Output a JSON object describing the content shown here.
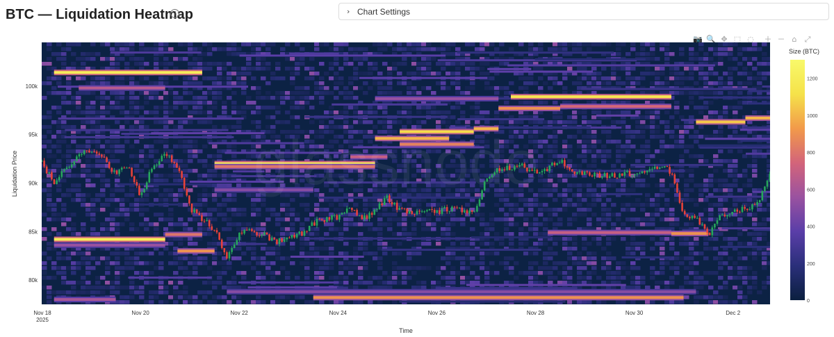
{
  "page": {
    "title": "BTC — Liquidation Heatmap",
    "help_icon": "?",
    "settings_label": "Chart Settings",
    "settings_icon": "chevron-right-icon"
  },
  "toolbar": [
    {
      "name": "camera-icon",
      "glyph": "📷"
    },
    {
      "name": "zoom-icon",
      "glyph": "🔍"
    },
    {
      "name": "pan-icon",
      "glyph": "✥"
    },
    {
      "name": "box-select-icon",
      "glyph": "⬚"
    },
    {
      "name": "lasso-select-icon",
      "glyph": "◌"
    },
    {
      "name": "zoom-in-icon",
      "glyph": "＋"
    },
    {
      "name": "zoom-out-icon",
      "glyph": "－"
    },
    {
      "name": "home-icon",
      "glyph": "⌂"
    },
    {
      "name": "autoscale-icon",
      "glyph": "⤢"
    }
  ],
  "chart_data": {
    "type": "heatmap",
    "xlabel": "Time",
    "ylabel": "Liquidation Price",
    "x_ticks": [
      "Nov 18\n2025",
      "Nov 20",
      "Nov 22",
      "Nov 24",
      "Nov 26",
      "Nov 28",
      "Nov 30",
      "Dec 2"
    ],
    "x_range": [
      "2025-11-18",
      "2025-12-02 18:00"
    ],
    "y_ticks": [
      "80k",
      "85k",
      "90k",
      "95k",
      "100k"
    ],
    "ylim": [
      77500,
      104500
    ],
    "colorbar": {
      "title": "Size (BTC)",
      "ticks": [
        "0",
        "200",
        "400",
        "600",
        "800",
        "1000",
        "1200"
      ],
      "range": [
        0,
        1300
      ],
      "colors": [
        "#0b1f3f",
        "#2a2f7a",
        "#5a3ea8",
        "#9a52a0",
        "#d3647a",
        "#f29a4a",
        "#f5e24a",
        "#f8f96a"
      ]
    },
    "liquidation_bands": [
      {
        "price": 101400,
        "start": "2025-11-18 06:00",
        "end": "2025-11-21 06:00",
        "size": 1200
      },
      {
        "price": 99800,
        "start": "2025-11-18 18:00",
        "end": "2025-11-20 12:00",
        "size": 650
      },
      {
        "price": 98700,
        "start": "2025-11-24 18:00",
        "end": "2025-11-27 06:00",
        "size": 550
      },
      {
        "price": 98900,
        "start": "2025-11-27 12:00",
        "end": "2025-11-30 18:00",
        "size": 1150
      },
      {
        "price": 97700,
        "start": "2025-11-27 06:00",
        "end": "2025-11-28 12:00",
        "size": 900
      },
      {
        "price": 97900,
        "start": "2025-11-28 12:00",
        "end": "2025-11-30 18:00",
        "size": 750
      },
      {
        "price": 96300,
        "start": "2025-12-01 06:00",
        "end": "2025-12-02 06:00",
        "size": 1050
      },
      {
        "price": 96700,
        "start": "2025-12-02 06:00",
        "end": "2025-12-02 18:00",
        "size": 1000
      },
      {
        "price": 95300,
        "start": "2025-11-25 06:00",
        "end": "2025-11-26 18:00",
        "size": 1100
      },
      {
        "price": 95600,
        "start": "2025-11-26 18:00",
        "end": "2025-11-27 06:00",
        "size": 1000
      },
      {
        "price": 94600,
        "start": "2025-11-24 18:00",
        "end": "2025-11-26 06:00",
        "size": 1000
      },
      {
        "price": 94000,
        "start": "2025-11-25 06:00",
        "end": "2025-11-26 18:00",
        "size": 850
      },
      {
        "price": 92700,
        "start": "2025-11-24 06:00",
        "end": "2025-11-25 00:00",
        "size": 700
      },
      {
        "price": 92000,
        "start": "2025-11-21 12:00",
        "end": "2025-11-24 18:00",
        "size": 1200
      },
      {
        "price": 91700,
        "start": "2025-11-21 12:00",
        "end": "2025-11-24 18:00",
        "size": 800
      },
      {
        "price": 89300,
        "start": "2025-11-21 12:00",
        "end": "2025-11-23 12:00",
        "size": 500
      },
      {
        "price": 84900,
        "start": "2025-11-28 06:00",
        "end": "2025-11-30 18:00",
        "size": 700
      },
      {
        "price": 84800,
        "start": "2025-11-30 18:00",
        "end": "2025-12-01 12:00",
        "size": 900
      },
      {
        "price": 84700,
        "start": "2025-11-20 12:00",
        "end": "2025-11-21 06:00",
        "size": 800
      },
      {
        "price": 84200,
        "start": "2025-11-18 06:00",
        "end": "2025-11-20 12:00",
        "size": 1200
      },
      {
        "price": 83600,
        "start": "2025-11-18 06:00",
        "end": "2025-11-20 12:00",
        "size": 550
      },
      {
        "price": 83000,
        "start": "2025-11-20 18:00",
        "end": "2025-11-21 12:00",
        "size": 900
      },
      {
        "price": 78800,
        "start": "2025-11-21 18:00",
        "end": "2025-12-01 06:00",
        "size": 500
      },
      {
        "price": 78200,
        "start": "2025-11-23 12:00",
        "end": "2025-12-01 00:00",
        "size": 900
      },
      {
        "price": 78000,
        "start": "2025-11-18 06:00",
        "end": "2025-11-19 12:00",
        "size": 600
      }
    ],
    "price_series": {
      "name": "BTC",
      "up_color": "#26a65b",
      "down_color": "#e8423a",
      "points": [
        [
          "2025-11-18 00:00",
          92200
        ],
        [
          "2025-11-18 06:00",
          90000
        ],
        [
          "2025-11-18 12:00",
          91500
        ],
        [
          "2025-11-18 18:00",
          92800
        ],
        [
          "2025-11-19 00:00",
          93600
        ],
        [
          "2025-11-19 06:00",
          92700
        ],
        [
          "2025-11-19 12:00",
          90800
        ],
        [
          "2025-11-19 18:00",
          91800
        ],
        [
          "2025-11-20 00:00",
          88600
        ],
        [
          "2025-11-20 06:00",
          91800
        ],
        [
          "2025-11-20 12:00",
          93000
        ],
        [
          "2025-11-20 18:00",
          91800
        ],
        [
          "2025-11-21 00:00",
          87400
        ],
        [
          "2025-11-21 06:00",
          86300
        ],
        [
          "2025-11-21 12:00",
          85100
        ],
        [
          "2025-11-21 18:00",
          82400
        ],
        [
          "2025-11-22 00:00",
          84800
        ],
        [
          "2025-11-22 06:00",
          85000
        ],
        [
          "2025-11-22 12:00",
          84600
        ],
        [
          "2025-11-22 18:00",
          84000
        ],
        [
          "2025-11-23 00:00",
          84300
        ],
        [
          "2025-11-23 06:00",
          84800
        ],
        [
          "2025-11-23 12:00",
          85900
        ],
        [
          "2025-11-23 18:00",
          86300
        ],
        [
          "2025-11-24 00:00",
          86500
        ],
        [
          "2025-11-24 06:00",
          87300
        ],
        [
          "2025-11-24 12:00",
          86200
        ],
        [
          "2025-11-24 18:00",
          87200
        ],
        [
          "2025-11-25 00:00",
          88500
        ],
        [
          "2025-11-25 06:00",
          87300
        ],
        [
          "2025-11-25 12:00",
          86800
        ],
        [
          "2025-11-25 18:00",
          87200
        ],
        [
          "2025-11-26 00:00",
          87000
        ],
        [
          "2025-11-26 06:00",
          87400
        ],
        [
          "2025-11-26 12:00",
          87300
        ],
        [
          "2025-11-26 18:00",
          87000
        ],
        [
          "2025-11-27 00:00",
          90500
        ],
        [
          "2025-11-27 06:00",
          91300
        ],
        [
          "2025-11-27 12:00",
          91600
        ],
        [
          "2025-11-27 18:00",
          91700
        ],
        [
          "2025-11-28 00:00",
          91200
        ],
        [
          "2025-11-28 06:00",
          91500
        ],
        [
          "2025-11-28 12:00",
          92400
        ],
        [
          "2025-11-28 18:00",
          91000
        ],
        [
          "2025-11-29 00:00",
          90900
        ],
        [
          "2025-11-29 06:00",
          90800
        ],
        [
          "2025-11-29 12:00",
          90700
        ],
        [
          "2025-11-29 18:00",
          90900
        ],
        [
          "2025-11-30 00:00",
          91100
        ],
        [
          "2025-11-30 06:00",
          91400
        ],
        [
          "2025-11-30 12:00",
          91800
        ],
        [
          "2025-11-30 18:00",
          91200
        ],
        [
          "2025-12-01 00:00",
          86500
        ],
        [
          "2025-12-01 06:00",
          86400
        ],
        [
          "2025-12-01 12:00",
          84500
        ],
        [
          "2025-12-01 18:00",
          86700
        ],
        [
          "2025-12-02 00:00",
          87100
        ],
        [
          "2025-12-02 06:00",
          87400
        ],
        [
          "2025-12-02 12:00",
          87800
        ],
        [
          "2025-12-02 18:00",
          91100
        ]
      ]
    },
    "watermark": "glassnode"
  }
}
